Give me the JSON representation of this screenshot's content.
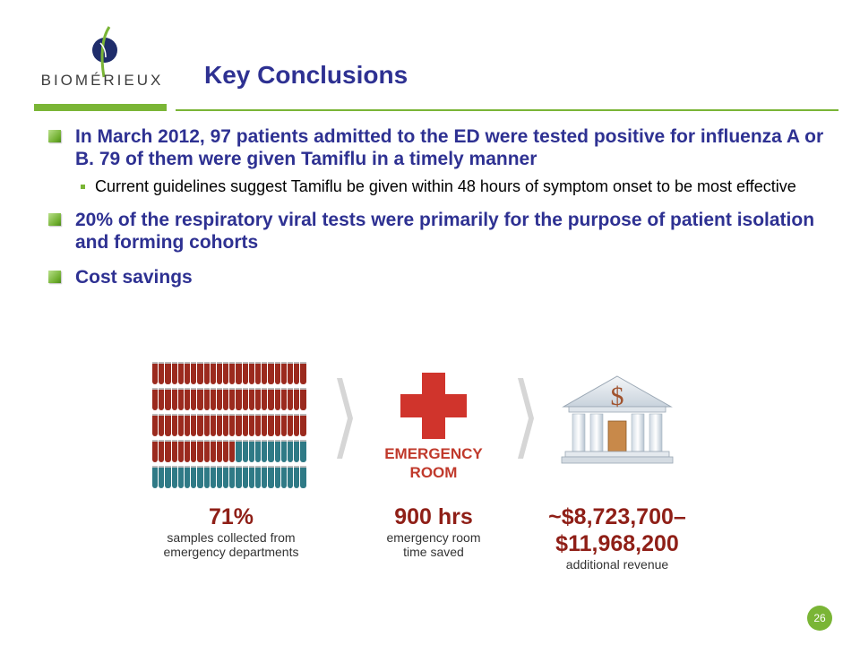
{
  "logo": {
    "text": "BIOMÉRIEUX"
  },
  "title": "Key Conclusions",
  "bullets": {
    "b1": "In March 2012, 97 patients admitted to the ED were tested positive for influenza A or B. 79 of them were given Tamiflu in a timely manner",
    "b1_sub": "Current guidelines suggest Tamiflu be given within 48 hours of symptom onset to be most effective",
    "b2": "20% of the respiratory viral tests were primarily for the purpose of patient isolation and forming cohorts",
    "b3": "Cost savings"
  },
  "infographic": {
    "samples": {
      "value": "71%",
      "desc1": "samples collected from",
      "desc2": "emergency departments",
      "fraction": 0.71
    },
    "er": {
      "label1": "EMERGENCY",
      "label2": "ROOM",
      "value": "900 hrs",
      "desc1": "emergency room",
      "desc2": "time saved"
    },
    "revenue": {
      "value1": "~$8,723,700–",
      "value2": "$11,968,200",
      "desc": "additional revenue",
      "icon": "$"
    }
  },
  "colors": {
    "brand_blue": "#2e3192",
    "accent_green": "#7ab536",
    "dark_red": "#8f1f17",
    "tube_teal": "#2f7a86"
  },
  "page_number": "26"
}
